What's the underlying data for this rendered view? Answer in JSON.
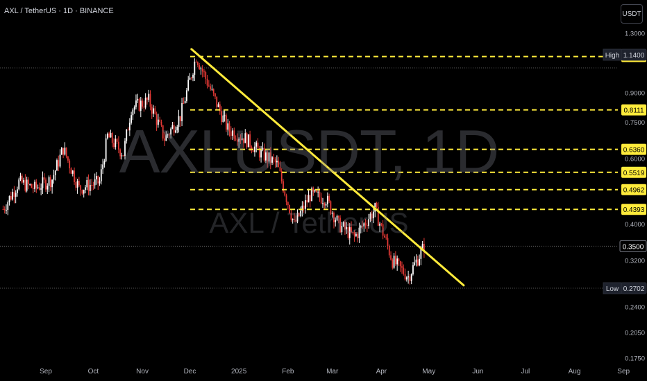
{
  "header": {
    "symbol_line": "AXL / TetherUS · 1D · BINANCE"
  },
  "unit_button": "USDT",
  "watermark": {
    "main": "AXLUSDT, 1D",
    "sub": "AXL / TetherUS"
  },
  "colors": {
    "background": "#000000",
    "up": "#ffffff",
    "down": "#e53935",
    "level": "#ffeb3b",
    "trendline": "#ffeb3b"
  },
  "chart_data": {
    "type": "candlestick",
    "scale": "log",
    "ylim": [
      0.165,
      1.34
    ],
    "x_ticks": [
      "Sep",
      "Oct",
      "Nov",
      "Dec",
      "2025",
      "Feb",
      "Mar",
      "Apr",
      "May",
      "Jun",
      "Jul",
      "Aug",
      "Sep"
    ],
    "y_ticks": [
      "1.3000",
      "0.9000",
      "0.7500",
      "0.6000",
      "0.4000",
      "0.3200",
      "0.2400",
      "0.2050",
      "0.1750"
    ],
    "price_levels": [
      "1.1275",
      "0.8111",
      "0.6360",
      "0.5519",
      "0.4962",
      "0.4393"
    ],
    "high": {
      "label": "High",
      "value": "1.1400"
    },
    "low": {
      "label": "Low",
      "value": "0.2702"
    },
    "current_price": "0.3500",
    "trendline": {
      "start": {
        "date": "2024-12-02",
        "price": 1.18
      },
      "end": {
        "date": "2025-05-23",
        "price": 0.275
      }
    },
    "close_path": [
      {
        "date": "2024-08-05",
        "price": 0.44
      },
      {
        "date": "2024-08-15",
        "price": 0.52
      },
      {
        "date": "2024-08-25",
        "price": 0.5
      },
      {
        "date": "2024-09-05",
        "price": 0.53
      },
      {
        "date": "2024-09-12",
        "price": 0.64
      },
      {
        "date": "2024-09-22",
        "price": 0.5
      },
      {
        "date": "2024-10-05",
        "price": 0.52
      },
      {
        "date": "2024-10-10",
        "price": 0.69
      },
      {
        "date": "2024-10-20",
        "price": 0.62
      },
      {
        "date": "2024-10-25",
        "price": 0.82
      },
      {
        "date": "2024-11-05",
        "price": 0.86
      },
      {
        "date": "2024-11-15",
        "price": 0.68
      },
      {
        "date": "2024-11-25",
        "price": 0.78
      },
      {
        "date": "2024-12-05",
        "price": 1.13
      },
      {
        "date": "2024-12-15",
        "price": 0.9
      },
      {
        "date": "2024-12-25",
        "price": 0.72
      },
      {
        "date": "2025-01-05",
        "price": 0.68
      },
      {
        "date": "2025-01-15",
        "price": 0.62
      },
      {
        "date": "2025-01-25",
        "price": 0.58
      },
      {
        "date": "2025-02-05",
        "price": 0.4
      },
      {
        "date": "2025-02-15",
        "price": 0.48
      },
      {
        "date": "2025-02-25",
        "price": 0.47
      },
      {
        "date": "2025-03-05",
        "price": 0.4
      },
      {
        "date": "2025-03-15",
        "price": 0.37
      },
      {
        "date": "2025-03-28",
        "price": 0.44
      },
      {
        "date": "2025-04-08",
        "price": 0.32
      },
      {
        "date": "2025-04-18",
        "price": 0.29
      },
      {
        "date": "2025-04-28",
        "price": 0.35
      }
    ]
  }
}
